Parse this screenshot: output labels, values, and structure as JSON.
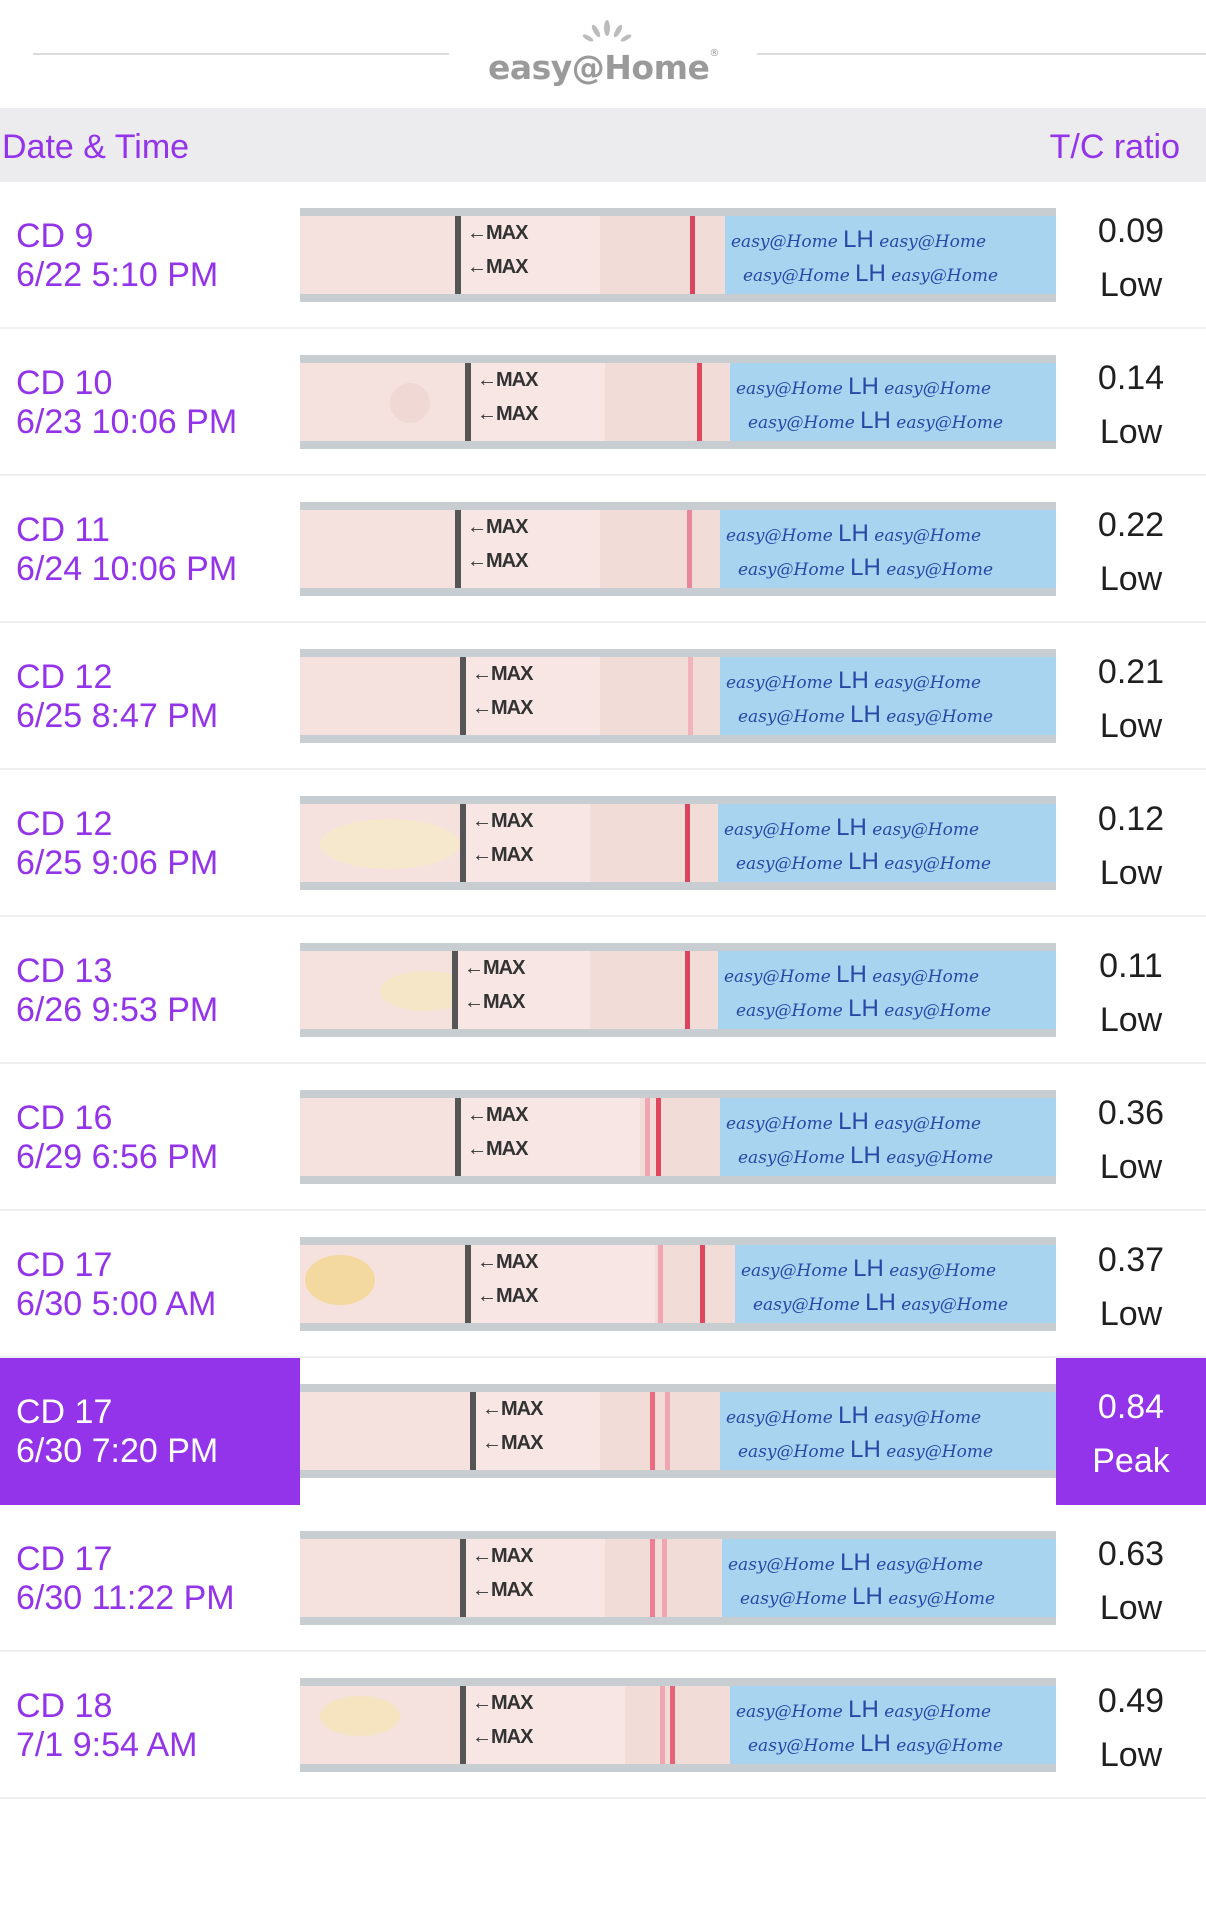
{
  "brand": {
    "logo_text": "easy@Home",
    "logo_reg": "®"
  },
  "colors": {
    "accent": "#9333ea",
    "header_bg": "#ececee"
  },
  "header": {
    "date_col": "Date & Time",
    "ratio_col": "T/C ratio"
  },
  "strip_labels": {
    "max": "←MAX",
    "brand_line": "easy@Home LH easy@Home"
  },
  "rows": [
    {
      "cd": "CD 9",
      "datetime": "6/22 5:10 PM",
      "ratio": "0.09",
      "status": "Low",
      "selected": false
    },
    {
      "cd": "CD 10",
      "datetime": "6/23 10:06 PM",
      "ratio": "0.14",
      "status": "Low",
      "selected": false
    },
    {
      "cd": "CD 11",
      "datetime": "6/24 10:06 PM",
      "ratio": "0.22",
      "status": "Low",
      "selected": false
    },
    {
      "cd": "CD 12",
      "datetime": "6/25 8:47 PM",
      "ratio": "0.21",
      "status": "Low",
      "selected": false
    },
    {
      "cd": "CD 12",
      "datetime": "6/25 9:06 PM",
      "ratio": "0.12",
      "status": "Low",
      "selected": false
    },
    {
      "cd": "CD 13",
      "datetime": "6/26 9:53 PM",
      "ratio": "0.11",
      "status": "Low",
      "selected": false
    },
    {
      "cd": "CD 16",
      "datetime": "6/29 6:56 PM",
      "ratio": "0.36",
      "status": "Low",
      "selected": false
    },
    {
      "cd": "CD 17",
      "datetime": "6/30 5:00 AM",
      "ratio": "0.37",
      "status": "Low",
      "selected": false
    },
    {
      "cd": "CD 17",
      "datetime": "6/30 7:20 PM",
      "ratio": "0.84",
      "status": "Peak",
      "selected": true
    },
    {
      "cd": "CD 17",
      "datetime": "6/30 11:22 PM",
      "ratio": "0.63",
      "status": "Low",
      "selected": false
    },
    {
      "cd": "CD 18",
      "datetime": "7/1 9:54 AM",
      "ratio": "0.49",
      "status": "Low",
      "selected": false
    }
  ]
}
